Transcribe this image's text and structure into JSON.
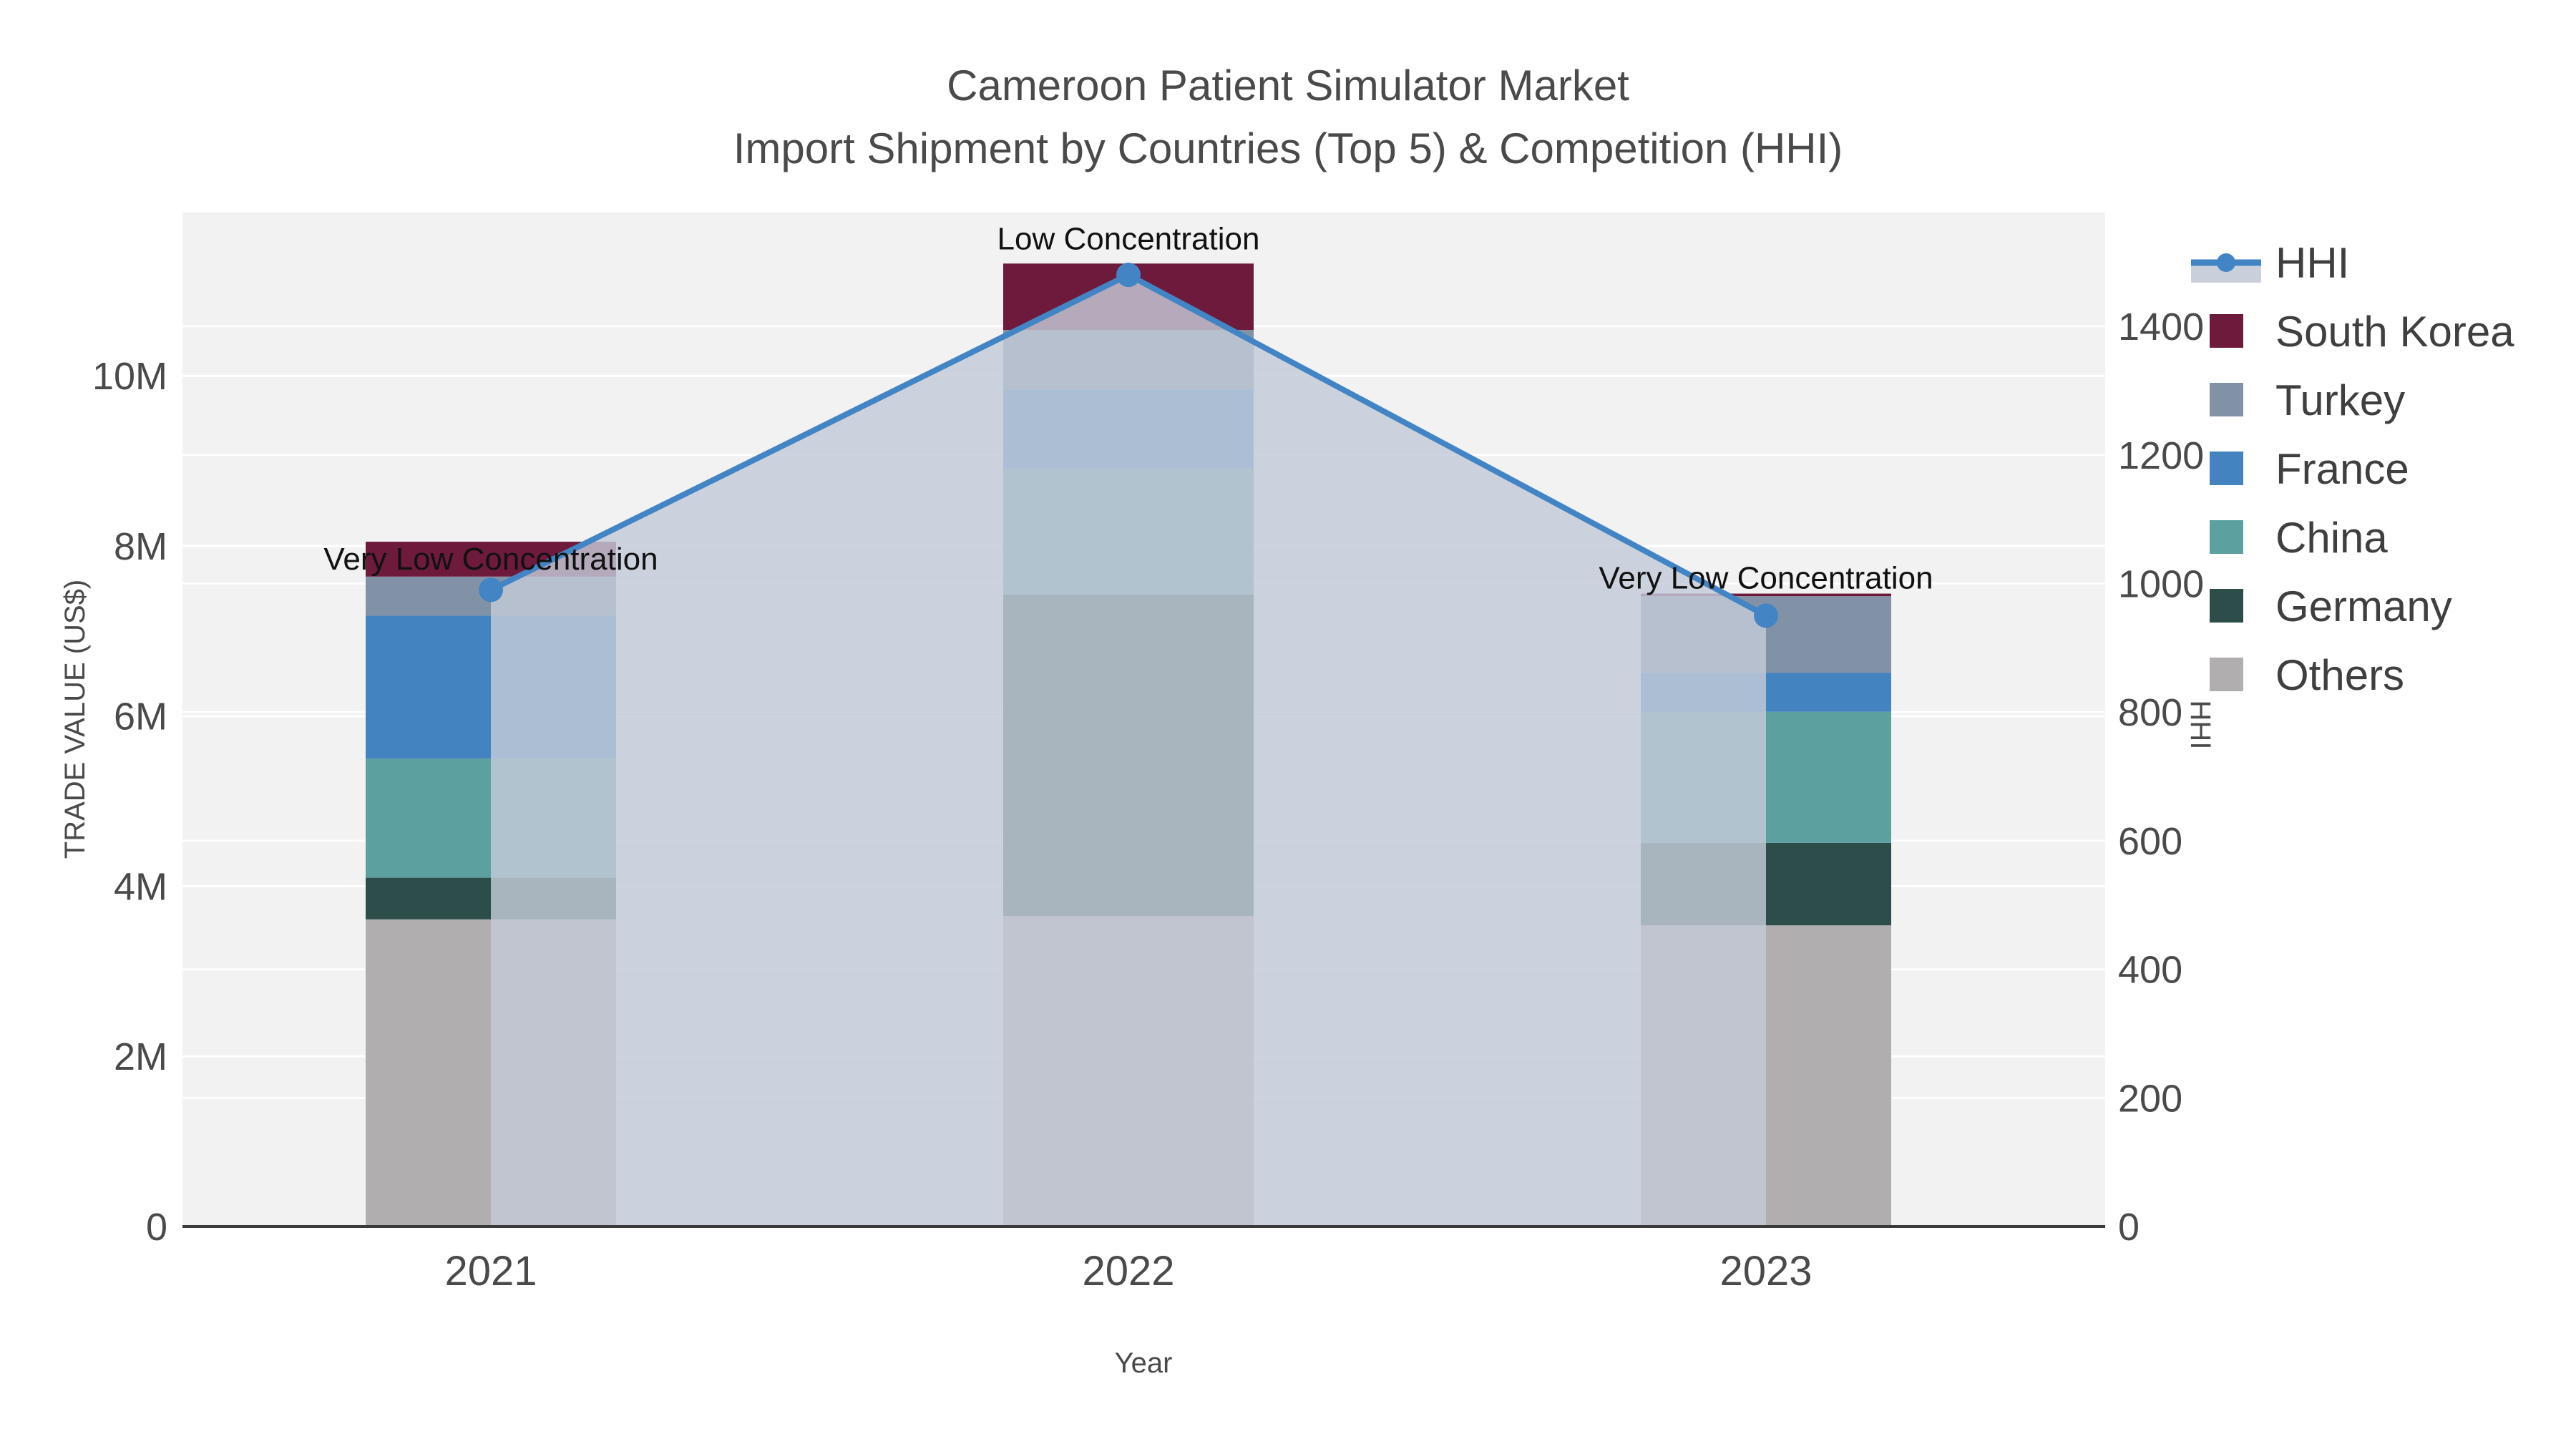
{
  "chart_data": {
    "type": "combo-stacked-bar-line",
    "title": "Cameroon Patient Simulator Market",
    "subtitle": "Import Shipment by Countries (Top 5) & Competition (HHI)",
    "xlabel": "Year",
    "ylabel_left": "TRADE VALUE (US$)",
    "ylabel_right": "HHI",
    "categories": [
      "2021",
      "2022",
      "2023"
    ],
    "bar_series_bottom_to_top": [
      {
        "name": "Others",
        "color": "#b0aeae",
        "values": [
          3610000,
          3650000,
          3540000
        ]
      },
      {
        "name": "Germany",
        "color": "#2d4d4b",
        "values": [
          490000,
          3780000,
          970000
        ]
      },
      {
        "name": "China",
        "color": "#5ca0a0",
        "values": [
          1400000,
          1480000,
          1540000
        ]
      },
      {
        "name": "France",
        "color": "#4383c0",
        "values": [
          1680000,
          930000,
          460000
        ]
      },
      {
        "name": "Turkey",
        "color": "#8292a6",
        "values": [
          460000,
          700000,
          900000
        ]
      },
      {
        "name": "South Korea",
        "color": "#6e1a3d",
        "values": [
          410000,
          780000,
          30000
        ]
      }
    ],
    "line_series": {
      "name": "HHI",
      "color": "#4284c4",
      "area_fill": "#c3cbd8",
      "area_opacity": 0.82,
      "values": [
        990,
        1480,
        950
      ]
    },
    "annotations": [
      {
        "category": "2021",
        "text": "Very Low Concentration"
      },
      {
        "category": "2022",
        "text": "Low Concentration"
      },
      {
        "category": "2023",
        "text": "Very Low Concentration"
      }
    ],
    "axes": {
      "left": {
        "max": 11920000,
        "tick_values": [
          0,
          2000000,
          4000000,
          6000000,
          8000000,
          10000000
        ],
        "tick_labels": [
          "0",
          "2M",
          "4M",
          "6M",
          "8M",
          "10M"
        ]
      },
      "right": {
        "max": 1577,
        "tick_values": [
          0,
          200,
          400,
          600,
          800,
          1000,
          1200,
          1400
        ],
        "tick_labels": [
          "0",
          "200",
          "400",
          "600",
          "800",
          "1000",
          "1200",
          "1400"
        ]
      }
    },
    "legend": {
      "items": [
        {
          "label": "HHI",
          "type": "line",
          "color": "#4284c4",
          "fill": "#c3cbd8"
        },
        {
          "label": "South Korea",
          "type": "swatch",
          "color": "#6e1a3d"
        },
        {
          "label": "Turkey",
          "type": "swatch",
          "color": "#8292a6"
        },
        {
          "label": "France",
          "type": "swatch",
          "color": "#4383c0"
        },
        {
          "label": "China",
          "type": "swatch",
          "color": "#5ca0a0"
        },
        {
          "label": "Germany",
          "type": "swatch",
          "color": "#2d4d4b"
        },
        {
          "label": "Others",
          "type": "swatch",
          "color": "#b0aeae"
        }
      ]
    },
    "style": {
      "plot_bg": "#f2f2f2",
      "grid_color": "#ffffff",
      "axisline_color": "#3a3a3a"
    }
  }
}
